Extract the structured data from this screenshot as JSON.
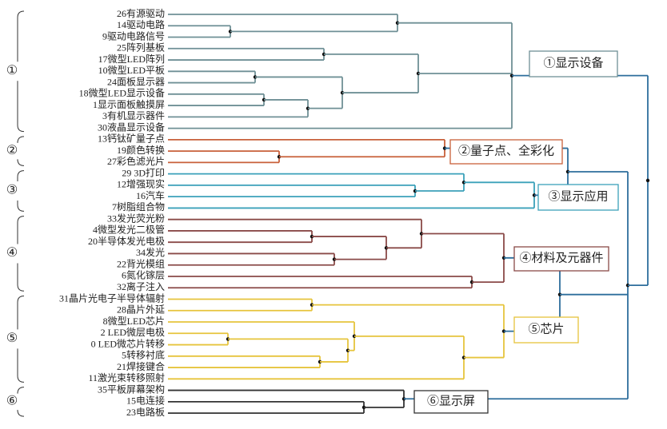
{
  "groups": [
    {
      "marker": "①",
      "label": "①显示设备",
      "leaves": [
        "26有源驱动",
        "14驱动电路",
        "9驱动电路信号",
        "25阵列基板",
        "17微型LED阵列",
        "10微型LED平板",
        "24面板显示器",
        "18微型LED显示设备",
        "1显示面板触摸屏",
        "3有机显示器件",
        "30液晶显示设备"
      ]
    },
    {
      "marker": "②",
      "label": "②量子点、全彩化",
      "leaves": [
        "13钙钛矿量子点",
        "19颜色转换",
        "27彩色滤光片"
      ]
    },
    {
      "marker": "③",
      "label": "③显示应用",
      "leaves": [
        "29 3D打印",
        "12增强现实",
        "16汽车",
        "7树脂组合物"
      ]
    },
    {
      "marker": "④",
      "label": "④材料及元器件",
      "leaves": [
        "33发光荧光粉",
        "4微型发光二极管",
        "20半导体发光电极",
        "34发光",
        "22背光模组",
        "6氮化镓层",
        "32离子注入"
      ]
    },
    {
      "marker": "⑤",
      "label": "⑤芯片",
      "leaves": [
        "31晶片光电子半导体辐射",
        "28晶片外延",
        "8微型LED芯片",
        "2 LED微层电极",
        "0 LED微芯片转移",
        "5转移衬底",
        "21焊接键合",
        "11激光束转移照射"
      ]
    },
    {
      "marker": "⑥",
      "label": "⑥显示屏",
      "leaves": [
        "35平板屏幕架构",
        "15电连接",
        "23电路板"
      ]
    }
  ]
}
